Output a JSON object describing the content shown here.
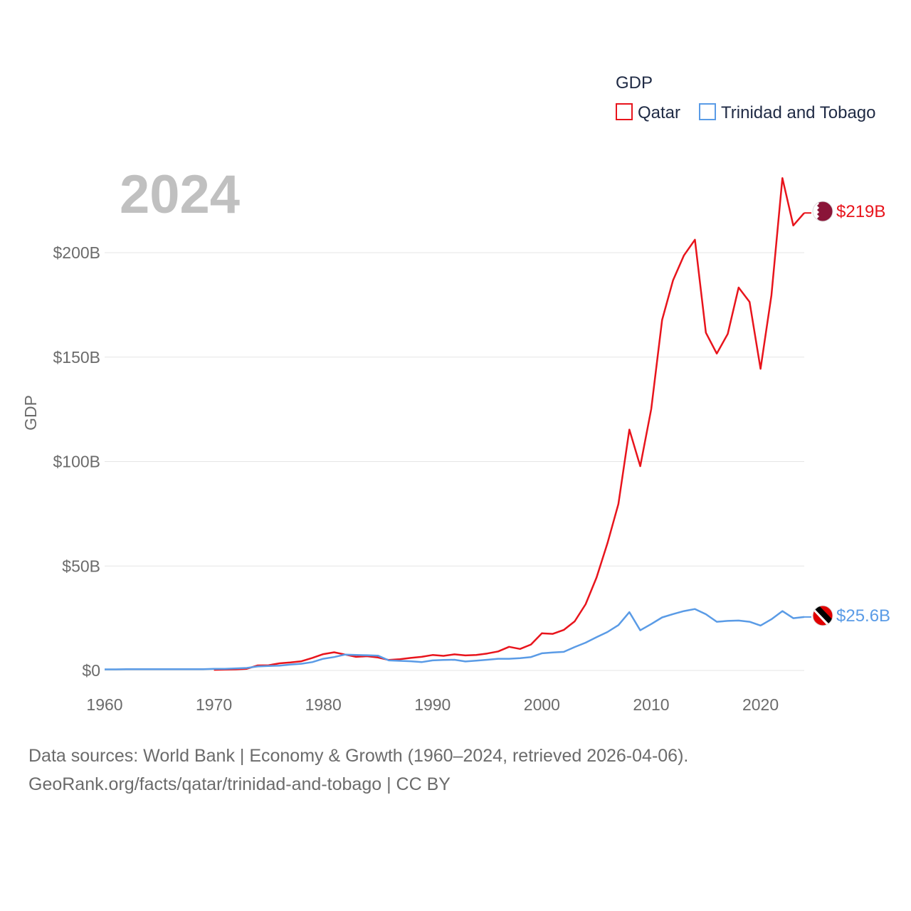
{
  "chart_data": {
    "type": "line",
    "year_label": "2024",
    "ylabel": "GDP",
    "legend_title": "GDP",
    "xlim": [
      1960,
      2024
    ],
    "ylim": [
      0,
      200
    ],
    "x_ticks": [
      1960,
      1970,
      1980,
      1990,
      2000,
      2010,
      2020
    ],
    "y_ticks": [
      {
        "value": 0,
        "label": "$0"
      },
      {
        "value": 50,
        "label": "$50B"
      },
      {
        "value": 100,
        "label": "$100B"
      },
      {
        "value": 150,
        "label": "$150B"
      },
      {
        "value": 200,
        "label": "$200B"
      }
    ],
    "units": "billion USD",
    "series": [
      {
        "name": "Qatar",
        "color": "#e8141c",
        "end_label": "$219B",
        "flag": "qatar-flag",
        "x": [
          1970,
          1971,
          1972,
          1973,
          1974,
          1975,
          1976,
          1977,
          1978,
          1979,
          1980,
          1981,
          1982,
          1983,
          1984,
          1985,
          1986,
          1987,
          1988,
          1989,
          1990,
          1991,
          1992,
          1993,
          1994,
          1995,
          1996,
          1997,
          1998,
          1999,
          2000,
          2001,
          2002,
          2003,
          2004,
          2005,
          2006,
          2007,
          2008,
          2009,
          2010,
          2011,
          2012,
          2013,
          2014,
          2015,
          2016,
          2017,
          2018,
          2019,
          2020,
          2021,
          2022,
          2023,
          2024
        ],
        "values": [
          0.3,
          0.4,
          0.5,
          0.8,
          2.4,
          2.5,
          3.4,
          3.8,
          4.4,
          6.0,
          7.8,
          8.7,
          7.6,
          6.5,
          6.8,
          6.2,
          5.0,
          5.4,
          6.0,
          6.5,
          7.4,
          7.0,
          7.7,
          7.2,
          7.4,
          8.1,
          9.1,
          11.3,
          10.3,
          12.4,
          17.8,
          17.5,
          19.4,
          23.5,
          31.7,
          44.5,
          60.9,
          79.7,
          115.3,
          97.8,
          125.1,
          167.8,
          186.8,
          198.7,
          206.2,
          161.7,
          151.7,
          161.1,
          183.3,
          176.4,
          144.4,
          179.6,
          235.7,
          213.0,
          219.0
        ]
      },
      {
        "name": "Trinidad and Tobago",
        "color": "#5a9be6",
        "end_label": "$25.6B",
        "flag": "trinidad-and-tobago-flag",
        "x": [
          1960,
          1961,
          1962,
          1963,
          1964,
          1965,
          1966,
          1967,
          1968,
          1969,
          1970,
          1971,
          1972,
          1973,
          1974,
          1975,
          1976,
          1977,
          1978,
          1979,
          1980,
          1981,
          1982,
          1983,
          1984,
          1985,
          1986,
          1987,
          1988,
          1989,
          1990,
          1991,
          1992,
          1993,
          1994,
          1995,
          1996,
          1997,
          1998,
          1999,
          2000,
          2001,
          2002,
          2003,
          2004,
          2005,
          2006,
          2007,
          2008,
          2009,
          2010,
          2011,
          2012,
          2013,
          2014,
          2015,
          2016,
          2017,
          2018,
          2019,
          2020,
          2021,
          2022,
          2023,
          2024
        ],
        "values": [
          0.5,
          0.5,
          0.6,
          0.6,
          0.6,
          0.6,
          0.6,
          0.6,
          0.6,
          0.6,
          0.8,
          0.8,
          1.0,
          1.2,
          1.9,
          2.1,
          2.3,
          2.8,
          3.2,
          4.0,
          5.6,
          6.4,
          7.6,
          7.4,
          7.3,
          7.1,
          4.8,
          4.6,
          4.4,
          4.0,
          4.8,
          5.0,
          5.1,
          4.3,
          4.7,
          5.1,
          5.6,
          5.6,
          5.9,
          6.4,
          8.2,
          8.6,
          8.9,
          11.2,
          13.3,
          15.9,
          18.4,
          21.7,
          27.9,
          19.2,
          22.2,
          25.4,
          27.0,
          28.4,
          29.4,
          26.9,
          23.3,
          23.7,
          23.9,
          23.3,
          21.5,
          24.5,
          28.4,
          25.0,
          25.6
        ]
      }
    ]
  },
  "source": {
    "line1": "Data sources: World Bank | Economy & Growth (1960–2024, retrieved 2026-04-06).",
    "line2": "GeoRank.org/facts/qatar/trinidad-and-tobago | CC BY"
  }
}
